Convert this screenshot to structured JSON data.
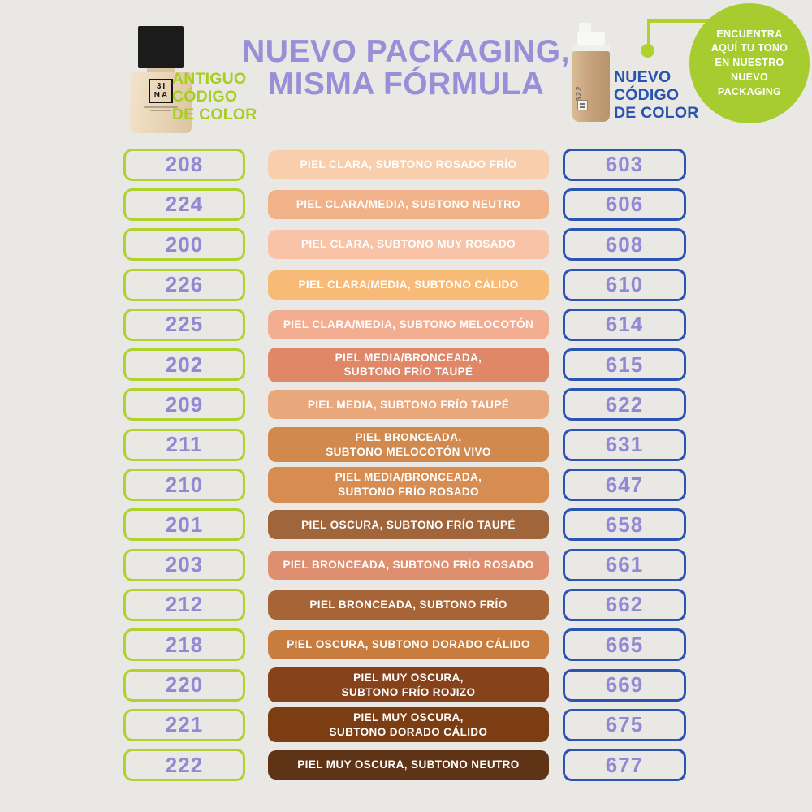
{
  "theme": {
    "background": "#E9E8E4",
    "lime": "#AFD32C",
    "lime_text": "#A6CE21",
    "blue_border": "#2E54B3",
    "blue_text": "#2953B0",
    "purple_code_text": "#9289D5",
    "purple_title": "#998FD9",
    "badge_green": "#A7CC2F",
    "swatch_text": "#FFFFFF"
  },
  "header": {
    "title_line1": "NUEVO PACKAGING,",
    "title_line2": "MISMA FÓRMULA",
    "old_column_label": "ANTIGUO\nCÓDIGO\nDE COLOR",
    "new_column_label": "NUEVO\nCÓDIGO\nDE COLOR",
    "badge_text": "ENCUENTRA\nAQUÍ TU TONO\nEN NUESTRO\nNUEVO\nPACKAGING"
  },
  "old_bottle": {
    "logo_line1": "3I",
    "logo_line2": "NA"
  },
  "new_bottle": {
    "code": "622"
  },
  "rows": [
    {
      "old": "208",
      "desc": "PIEL CLARA, SUBTONO ROSADO FRÍO",
      "new": "603",
      "swatch": "#F8CEAC"
    },
    {
      "old": "224",
      "desc": "PIEL CLARA/MEDIA, SUBTONO NEUTRO",
      "new": "606",
      "swatch": "#F1B189"
    },
    {
      "old": "200",
      "desc": "PIEL CLARA, SUBTONO MUY ROSADO",
      "new": "608",
      "swatch": "#F8C3A6"
    },
    {
      "old": "226",
      "desc": "PIEL CLARA/MEDIA, SUBTONO CÁLIDO",
      "new": "610",
      "swatch": "#F7BA77"
    },
    {
      "old": "225",
      "desc": "PIEL CLARA/MEDIA, SUBTONO MELOCOTÓN",
      "new": "614",
      "swatch": "#F3AE92"
    },
    {
      "old": "202",
      "desc": "PIEL MEDIA/BRONCEADA,\nSUBTONO FRÍO TAUPÉ",
      "new": "615",
      "swatch": "#DF8767"
    },
    {
      "old": "209",
      "desc": "PIEL MEDIA, SUBTONO FRÍO TAUPÉ",
      "new": "622",
      "swatch": "#E8A87C"
    },
    {
      "old": "211",
      "desc": "PIEL BRONCEADA,\nSUBTONO MELOCOTÓN VIVO",
      "new": "631",
      "swatch": "#D1894E"
    },
    {
      "old": "210",
      "desc": "PIEL MEDIA/BRONCEADA,\nSUBTONO FRÍO ROSADO",
      "new": "647",
      "swatch": "#D78D51"
    },
    {
      "old": "201",
      "desc": "PIEL OSCURA, SUBTONO FRÍO TAUPÉ",
      "new": "658",
      "swatch": "#A0653A"
    },
    {
      "old": "203",
      "desc": "PIEL BRONCEADA, SUBTONO FRÍO ROSADO",
      "new": "661",
      "swatch": "#DE8F70"
    },
    {
      "old": "212",
      "desc": "PIEL BRONCEADA, SUBTONO FRÍO",
      "new": "662",
      "swatch": "#A76537"
    },
    {
      "old": "218",
      "desc": "PIEL OSCURA, SUBTONO DORADO CÁLIDO",
      "new": "665",
      "swatch": "#C87C3D"
    },
    {
      "old": "220",
      "desc": "PIEL MUY OSCURA,\nSUBTONO FRÍO ROJIZO",
      "new": "669",
      "swatch": "#85421B"
    },
    {
      "old": "221",
      "desc": "PIEL MUY OSCURA,\nSUBTONO DORADO CÁLIDO",
      "new": "675",
      "swatch": "#7C3D12"
    },
    {
      "old": "222",
      "desc": "PIEL MUY OSCURA, SUBTONO NEUTRO",
      "new": "677",
      "swatch": "#5F3316"
    }
  ]
}
